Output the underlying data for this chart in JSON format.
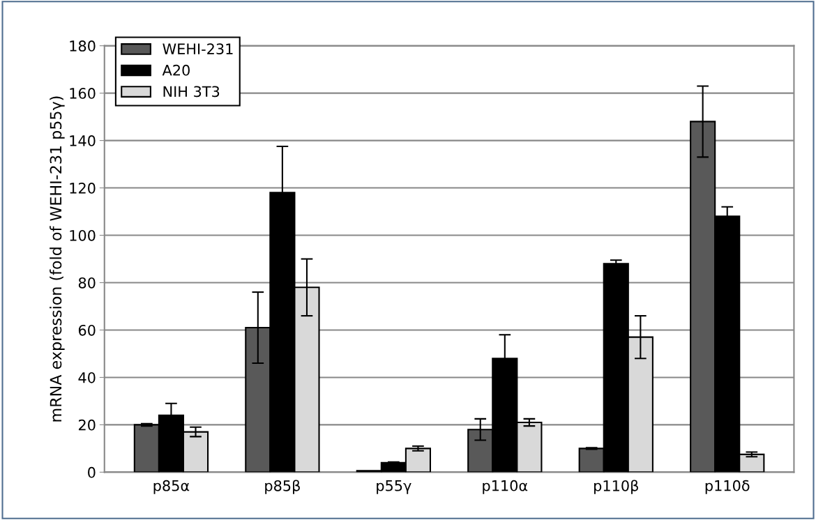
{
  "chart_data": {
    "type": "bar",
    "ylabel": "mRNA expression (fold of WEHI-231 p55γ)",
    "categories": [
      "p85α",
      "p85β",
      "p55γ",
      "p110α",
      "p110β",
      "p110δ"
    ],
    "series": [
      {
        "name": "WEHI-231",
        "color": "#595959",
        "values": [
          20,
          61,
          0.6,
          18,
          10,
          148
        ],
        "errors": [
          0.5,
          15,
          null,
          4.5,
          0.3,
          15
        ]
      },
      {
        "name": "A20",
        "color": "#000000",
        "values": [
          24,
          118,
          4,
          48,
          88,
          108
        ],
        "errors": [
          5,
          19.5,
          0.3,
          10,
          1.5,
          4
        ]
      },
      {
        "name": "NIH 3T3",
        "color": "#d9d9d9",
        "values": [
          17,
          78,
          10,
          21,
          57,
          7.5
        ],
        "errors": [
          2,
          12,
          1,
          1.5,
          9,
          1
        ]
      }
    ],
    "ylim": [
      0,
      180
    ],
    "yticks": [
      0,
      20,
      40,
      60,
      80,
      100,
      120,
      140,
      160,
      180
    ],
    "grid": "y",
    "legend": "top left"
  }
}
